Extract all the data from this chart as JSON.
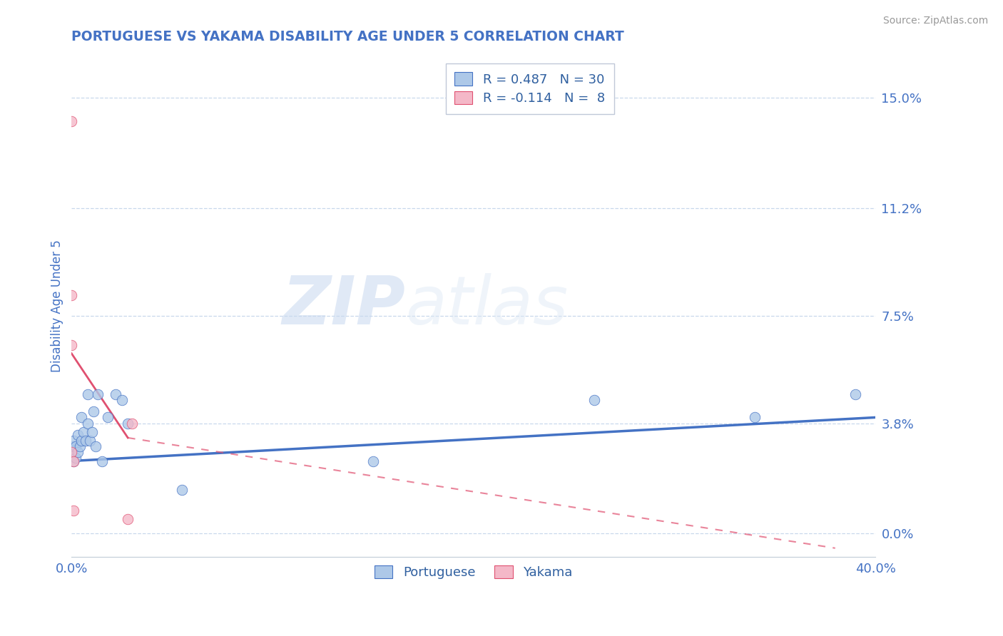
{
  "title": "PORTUGUESE VS YAKAMA DISABILITY AGE UNDER 5 CORRELATION CHART",
  "source": "Source: ZipAtlas.com",
  "ylabel_label": "Disability Age Under 5",
  "xlim": [
    0.0,
    0.4
  ],
  "ylim": [
    -0.008,
    0.165
  ],
  "yticks": [
    0.0,
    0.038,
    0.075,
    0.112,
    0.15
  ],
  "ytick_labels": [
    "0.0%",
    "3.8%",
    "7.5%",
    "11.2%",
    "15.0%"
  ],
  "xticks": [
    0.0,
    0.4
  ],
  "xtick_labels": [
    "0.0%",
    "40.0%"
  ],
  "portuguese_R": "0.487",
  "portuguese_N": "30",
  "yakama_R": "-0.114",
  "yakama_N": "8",
  "portuguese_color": "#adc8e8",
  "yakama_color": "#f4b8c8",
  "trendline_portuguese_color": "#4472c4",
  "trendline_yakama_color": "#e05070",
  "legend_text_color": "#3060a0",
  "title_color": "#4472c4",
  "axis_label_color": "#4472c4",
  "tick_color": "#4472c4",
  "grid_color": "#c8d8ec",
  "watermark_zip": "ZIP",
  "watermark_atlas": "atlas",
  "portuguese_x": [
    0.0,
    0.001,
    0.001,
    0.001,
    0.002,
    0.002,
    0.003,
    0.003,
    0.004,
    0.005,
    0.005,
    0.006,
    0.007,
    0.008,
    0.008,
    0.009,
    0.01,
    0.011,
    0.012,
    0.013,
    0.015,
    0.018,
    0.022,
    0.025,
    0.028,
    0.055,
    0.15,
    0.26,
    0.34,
    0.39
  ],
  "portuguese_y": [
    0.028,
    0.025,
    0.03,
    0.032,
    0.026,
    0.03,
    0.028,
    0.034,
    0.03,
    0.032,
    0.04,
    0.035,
    0.032,
    0.038,
    0.048,
    0.032,
    0.035,
    0.042,
    0.03,
    0.048,
    0.025,
    0.04,
    0.048,
    0.046,
    0.038,
    0.015,
    0.025,
    0.046,
    0.04,
    0.048
  ],
  "yakama_x": [
    0.0,
    0.0,
    0.0,
    0.0,
    0.001,
    0.001,
    0.028,
    0.03
  ],
  "yakama_y": [
    0.142,
    0.082,
    0.065,
    0.028,
    0.025,
    0.008,
    0.005,
    0.038
  ],
  "trendline_port_x0": 0.0,
  "trendline_port_x1": 0.4,
  "trendline_port_y0": 0.025,
  "trendline_port_y1": 0.04,
  "trendline_yak_solid_x0": 0.0,
  "trendline_yak_solid_x1": 0.028,
  "trendline_yak_solid_y0": 0.062,
  "trendline_yak_solid_y1": 0.033,
  "trendline_yak_dash_x0": 0.028,
  "trendline_yak_dash_x1": 0.38,
  "trendline_yak_dash_y0": 0.033,
  "trendline_yak_dash_y1": -0.005
}
